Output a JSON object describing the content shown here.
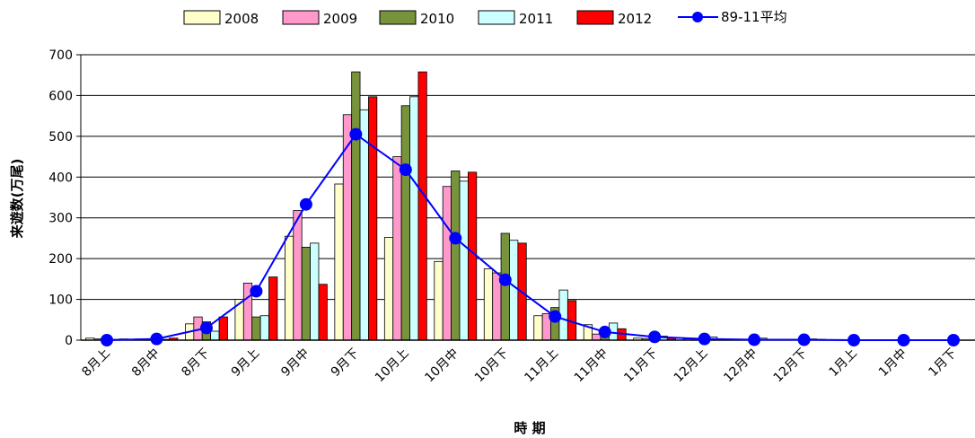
{
  "chart_data": {
    "type": "bar",
    "xlabel": "時 期",
    "ylabel": "来遊数(万尾)",
    "ylim": [
      0,
      700
    ],
    "yticks": [
      0,
      100,
      200,
      300,
      400,
      500,
      600,
      700
    ],
    "grid": false,
    "legend_position": "top",
    "categories": [
      "8月上",
      "8月中",
      "8月下",
      "9月上",
      "9月中",
      "9月下",
      "10月上",
      "10月中",
      "10月下",
      "11月上",
      "11月中",
      "11月下",
      "12月上",
      "12月中",
      "12月下",
      "1月上",
      "1月中",
      "1月下"
    ],
    "series": [
      {
        "name": "2008",
        "type": "bar",
        "color": "#ffffcc",
        "values": [
          5,
          3,
          40,
          100,
          255,
          383,
          252,
          193,
          175,
          60,
          38,
          5,
          3,
          2,
          2,
          0,
          0,
          0
        ]
      },
      {
        "name": "2009",
        "type": "bar",
        "color": "#ff99cc",
        "values": [
          3,
          2,
          57,
          140,
          318,
          553,
          450,
          377,
          165,
          65,
          15,
          4,
          3,
          1,
          1,
          0,
          0,
          0
        ]
      },
      {
        "name": "2010",
        "type": "bar",
        "color": "#77933c",
        "values": [
          3,
          5,
          45,
          57,
          228,
          658,
          575,
          415,
          262,
          80,
          28,
          8,
          5,
          3,
          2,
          0,
          0,
          0
        ]
      },
      {
        "name": "2011",
        "type": "bar",
        "color": "#ccffff",
        "values": [
          2,
          2,
          22,
          60,
          238,
          565,
          597,
          390,
          245,
          123,
          42,
          10,
          8,
          5,
          3,
          0,
          0,
          0
        ]
      },
      {
        "name": "2012",
        "type": "bar",
        "color": "#ff0000",
        "values": [
          3,
          5,
          57,
          155,
          137,
          597,
          658,
          412,
          238,
          97,
          28,
          5,
          3,
          2,
          2,
          0,
          0,
          0
        ]
      },
      {
        "name": "89-11平均",
        "type": "line",
        "color": "#0000ff",
        "values": [
          0,
          3,
          30,
          120,
          333,
          505,
          418,
          250,
          148,
          58,
          20,
          8,
          3,
          1,
          1,
          0,
          0,
          0
        ]
      }
    ]
  }
}
